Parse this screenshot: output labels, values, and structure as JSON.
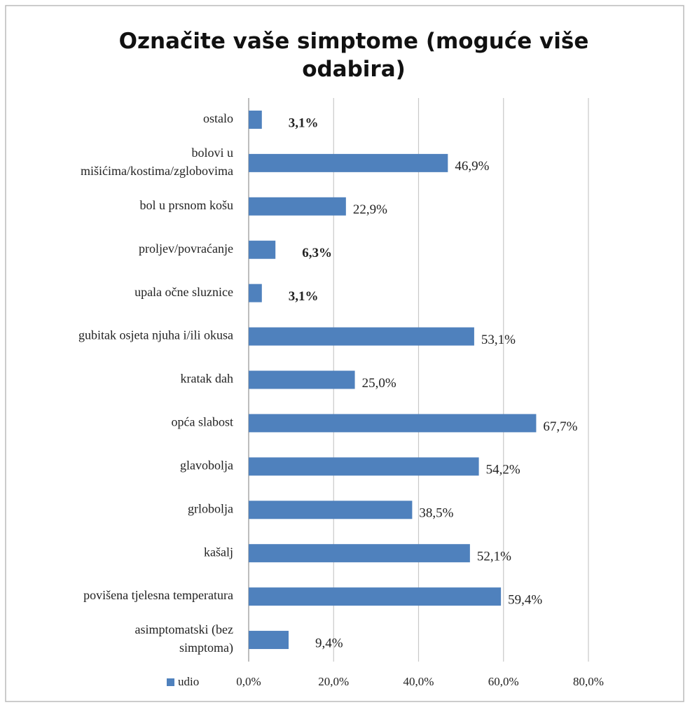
{
  "chart_data": {
    "type": "barh",
    "title": "Označite vaše simptome (moguće više odabira)",
    "categories": [
      "ostalo",
      "bolovi u\nmišićima/kostima/zglobovima",
      "bol u prsnom košu",
      "proljev/povraćanje",
      "upala očne sluznice",
      "gubitak osjeta njuha i/ili okusa",
      "kratak dah",
      "opća slabost",
      "glavobolja",
      "grlobolja",
      "kašalj",
      "povišena tjelesna temperatura",
      "asimptomatski (bez\nsimptoma)"
    ],
    "series": [
      {
        "name": "udio",
        "color": "#4f81bd",
        "values": [
          3.1,
          46.9,
          22.9,
          6.3,
          3.1,
          53.1,
          25.0,
          67.7,
          54.2,
          38.5,
          52.1,
          59.4,
          9.4
        ],
        "value_labels": [
          "3,1%",
          "46,9%",
          "22,9%",
          "6,3%",
          "3,1%",
          "53,1%",
          "25,0%",
          "67,7%",
          "54,2%",
          "38,5%",
          "52,1%",
          "59,4%",
          "9,4%"
        ],
        "value_label_colors": [
          "#7030a0",
          "#222222",
          "#222222",
          "#7030a0",
          "#7030a0",
          "#222222",
          "#222222",
          "#ff3333",
          "#222222",
          "#222222",
          "#222222",
          "#ff3333",
          "#222222"
        ]
      }
    ],
    "xlim": [
      0,
      80
    ],
    "xticks": [
      {
        "value": 0,
        "label": "0,0%"
      },
      {
        "value": 20,
        "label": "20,0%"
      },
      {
        "value": 40,
        "label": "40,0%"
      },
      {
        "value": 60,
        "label": "60,0%"
      },
      {
        "value": 80,
        "label": "80,0%"
      }
    ],
    "grid": true,
    "legend": "bottom-left"
  }
}
